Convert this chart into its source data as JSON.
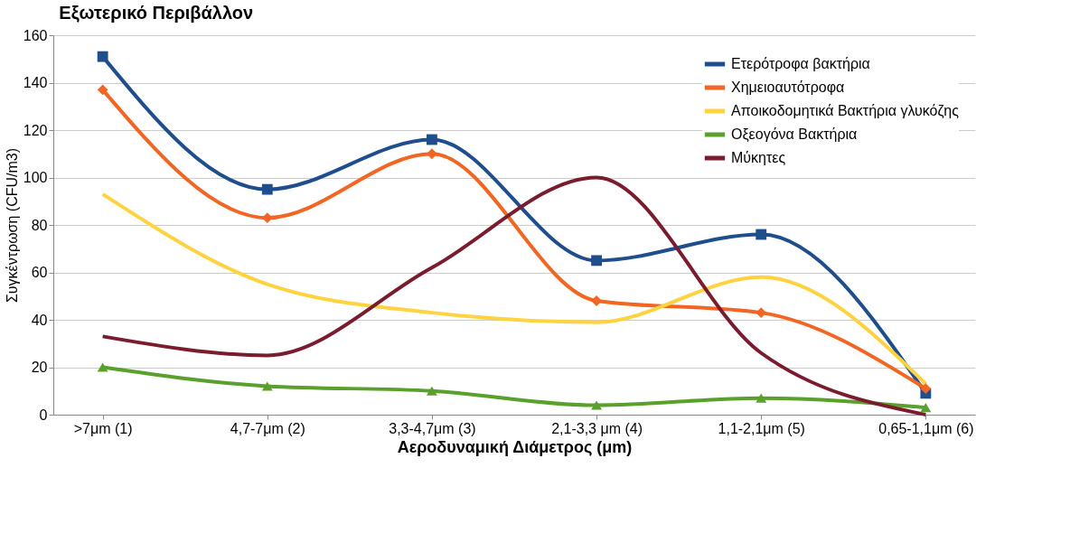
{
  "chart_data": {
    "type": "line",
    "title": "Εξωτερικό Περιβάλλον",
    "xlabel": "Αεροδυναμική Διάμετρος (μm)",
    "ylabel": "Συγκέντρωση (CFU/m3)",
    "categories": [
      ">7μm (1)",
      "4,7-7μm (2)",
      "3,3-4,7μm (3)",
      "2,1-3,3 μm (4)",
      "1,1-2,1μm (5)",
      "0,65-1,1μm (6)"
    ],
    "series": [
      {
        "name": "Ετερότροφα  βακτήρια",
        "color": "#1f4e8c",
        "marker": "square",
        "values": [
          151,
          95,
          116,
          65,
          76,
          9
        ]
      },
      {
        "name": "Χημειοαυτότροφα",
        "color": "#f26522",
        "marker": "diamond",
        "values": [
          137,
          83,
          110,
          48,
          43,
          11
        ]
      },
      {
        "name": "Αποικοδομητικά Βακτήρια γλυκόζης",
        "color": "#ffd23f",
        "marker": "none",
        "values": [
          93,
          55,
          43,
          39,
          58,
          13
        ]
      },
      {
        "name": "Οξεογόνα Βακτήρια",
        "color": "#5aa02c",
        "marker": "triangle",
        "values": [
          20,
          12,
          10,
          4,
          7,
          3
        ]
      },
      {
        "name": "Μύκητες",
        "color": "#7b1c2e",
        "marker": "none",
        "values": [
          33,
          25,
          62,
          100,
          26,
          0
        ]
      }
    ],
    "ylim": [
      0,
      160
    ],
    "yticks": [
      0,
      20,
      40,
      60,
      80,
      100,
      120,
      140,
      160
    ],
    "grid": "y",
    "legend": "top right",
    "line_style": "solid"
  }
}
